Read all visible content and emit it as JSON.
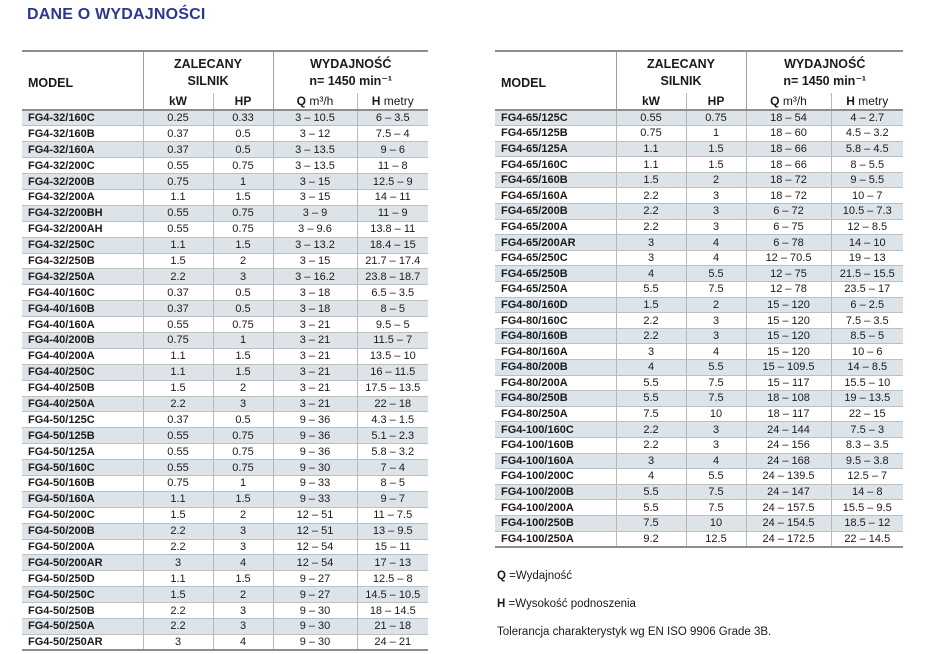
{
  "page_title": "DANE O WYDAJNOŚCI",
  "colors": {
    "title_blue": "#2b3990",
    "row_shade": "#dce3e9",
    "border_dark": "#8a8e91",
    "border_light": "#b5b9bc",
    "text": "#1a1a1a"
  },
  "header": {
    "model": "MODEL",
    "motor_group": "ZALECANY\nSILNIK",
    "perf_group": "WYDAJNOŚĆ\nn= 1450 min⁻¹",
    "kw": "kW",
    "hp": "HP",
    "q_symbol": "Q",
    "q_unit": " m³/h",
    "h_symbol": "H",
    "h_unit": " metry"
  },
  "tables": [
    {
      "rows": [
        [
          "FG4-32/160C",
          "0.25",
          "0.33",
          "3 – 10.5",
          "6 – 3.5"
        ],
        [
          "FG4-32/160B",
          "0.37",
          "0.5",
          "3 – 12",
          "7.5 – 4"
        ],
        [
          "FG4-32/160A",
          "0.37",
          "0.5",
          "3 – 13.5",
          "9 – 6"
        ],
        [
          "FG4-32/200C",
          "0.55",
          "0.75",
          "3 – 13.5",
          "11 – 8"
        ],
        [
          "FG4-32/200B",
          "0.75",
          "1",
          "3 – 15",
          "12.5 – 9"
        ],
        [
          "FG4-32/200A",
          "1.1",
          "1.5",
          "3 – 15",
          "14 – 11"
        ],
        [
          "FG4-32/200BH",
          "0.55",
          "0.75",
          "3 – 9",
          "11 – 9"
        ],
        [
          "FG4-32/200AH",
          "0.55",
          "0.75",
          "3 – 9.6",
          "13.8 – 11"
        ],
        [
          "FG4-32/250C",
          "1.1",
          "1.5",
          "3 – 13.2",
          "18.4 – 15"
        ],
        [
          "FG4-32/250B",
          "1.5",
          "2",
          "3 – 15",
          "21.7 – 17.4"
        ],
        [
          "FG4-32/250A",
          "2.2",
          "3",
          "3 – 16.2",
          "23.8 – 18.7"
        ],
        [
          "FG4-40/160C",
          "0.37",
          "0.5",
          "3 – 18",
          "6.5 – 3.5"
        ],
        [
          "FG4-40/160B",
          "0.37",
          "0.5",
          "3 – 18",
          "8 – 5"
        ],
        [
          "FG4-40/160A",
          "0.55",
          "0.75",
          "3 – 21",
          "9.5 – 5"
        ],
        [
          "FG4-40/200B",
          "0.75",
          "1",
          "3 – 21",
          "11.5 – 7"
        ],
        [
          "FG4-40/200A",
          "1.1",
          "1.5",
          "3 – 21",
          "13.5 – 10"
        ],
        [
          "FG4-40/250C",
          "1.1",
          "1.5",
          "3 – 21",
          "16 – 11.5"
        ],
        [
          "FG4-40/250B",
          "1.5",
          "2",
          "3 – 21",
          "17.5 – 13.5"
        ],
        [
          "FG4-40/250A",
          "2.2",
          "3",
          "3 – 21",
          "22 – 18"
        ],
        [
          "FG4-50/125C",
          "0.37",
          "0.5",
          "9 – 36",
          "4.3 – 1.5"
        ],
        [
          "FG4-50/125B",
          "0.55",
          "0.75",
          "9 – 36",
          "5.1 – 2.3"
        ],
        [
          "FG4-50/125A",
          "0.55",
          "0.75",
          "9 – 36",
          "5.8 – 3.2"
        ],
        [
          "FG4-50/160C",
          "0.55",
          "0.75",
          "9 – 30",
          "7 – 4"
        ],
        [
          "FG4-50/160B",
          "0.75",
          "1",
          "9 – 33",
          "8 – 5"
        ],
        [
          "FG4-50/160A",
          "1.1",
          "1.5",
          "9 – 33",
          "9 – 7"
        ],
        [
          "FG4-50/200C",
          "1.5",
          "2",
          "12 – 51",
          "11 – 7.5"
        ],
        [
          "FG4-50/200B",
          "2.2",
          "3",
          "12 – 51",
          "13 – 9.5"
        ],
        [
          "FG4-50/200A",
          "2.2",
          "3",
          "12 – 54",
          "15 – 11"
        ],
        [
          "FG4-50/200AR",
          "3",
          "4",
          "12 – 54",
          "17 – 13"
        ],
        [
          "FG4-50/250D",
          "1.1",
          "1.5",
          "9 – 27",
          "12.5 – 8"
        ],
        [
          "FG4-50/250C",
          "1.5",
          "2",
          "9 – 27",
          "14.5 – 10.5"
        ],
        [
          "FG4-50/250B",
          "2.2",
          "3",
          "9 – 30",
          "18 – 14.5"
        ],
        [
          "FG4-50/250A",
          "2.2",
          "3",
          "9 – 30",
          "21 – 18"
        ],
        [
          "FG4-50/250AR",
          "3",
          "4",
          "9 – 30",
          "24 – 21"
        ]
      ]
    },
    {
      "rows": [
        [
          "FG4-65/125C",
          "0.55",
          "0.75",
          "18 – 54",
          "4 – 2.7"
        ],
        [
          "FG4-65/125B",
          "0.75",
          "1",
          "18 – 60",
          "4.5 – 3.2"
        ],
        [
          "FG4-65/125A",
          "1.1",
          "1.5",
          "18 – 66",
          "5.8 – 4.5"
        ],
        [
          "FG4-65/160C",
          "1.1",
          "1.5",
          "18 – 66",
          "8 – 5.5"
        ],
        [
          "FG4-65/160B",
          "1.5",
          "2",
          "18 – 72",
          "9 – 5.5"
        ],
        [
          "FG4-65/160A",
          "2.2",
          "3",
          "18 – 72",
          "10 – 7"
        ],
        [
          "FG4-65/200B",
          "2.2",
          "3",
          "6 – 72",
          "10.5 – 7.3"
        ],
        [
          "FG4-65/200A",
          "2.2",
          "3",
          "6 – 75",
          "12 – 8.5"
        ],
        [
          "FG4-65/200AR",
          "3",
          "4",
          "6 – 78",
          "14 – 10"
        ],
        [
          "FG4-65/250C",
          "3",
          "4",
          "12 – 70.5",
          "19 – 13"
        ],
        [
          "FG4-65/250B",
          "4",
          "5.5",
          "12 – 75",
          "21.5 – 15.5"
        ],
        [
          "FG4-65/250A",
          "5.5",
          "7.5",
          "12 – 78",
          "23.5 – 17"
        ],
        [
          "FG4-80/160D",
          "1.5",
          "2",
          "15 – 120",
          "6 – 2.5"
        ],
        [
          "FG4-80/160C",
          "2.2",
          "3",
          "15 – 120",
          "7.5 – 3.5"
        ],
        [
          "FG4-80/160B",
          "2.2",
          "3",
          "15 – 120",
          "8.5 – 5"
        ],
        [
          "FG4-80/160A",
          "3",
          "4",
          "15 – 120",
          "10 – 6"
        ],
        [
          "FG4-80/200B",
          "4",
          "5.5",
          "15 – 109.5",
          "14 – 8.5"
        ],
        [
          "FG4-80/200A",
          "5.5",
          "7.5",
          "15 – 117",
          "15.5 – 10"
        ],
        [
          "FG4-80/250B",
          "5.5",
          "7.5",
          "18 – 108",
          "19 – 13.5"
        ],
        [
          "FG4-80/250A",
          "7.5",
          "10",
          "18 – 117",
          "22 – 15"
        ],
        [
          "FG4-100/160C",
          "2.2",
          "3",
          "24 – 144",
          "7.5 – 3"
        ],
        [
          "FG4-100/160B",
          "2.2",
          "3",
          "24 – 156",
          "8.3 – 3.5"
        ],
        [
          "FG4-100/160A",
          "3",
          "4",
          "24 – 168",
          "9.5 – 3.8"
        ],
        [
          "FG4-100/200C",
          "4",
          "5.5",
          "24 – 139.5",
          "12.5 – 7"
        ],
        [
          "FG4-100/200B",
          "5.5",
          "7.5",
          "24 – 147",
          "14 – 8"
        ],
        [
          "FG4-100/200A",
          "5.5",
          "7.5",
          "24 – 157.5",
          "15.5 – 9.5"
        ],
        [
          "FG4-100/250B",
          "7.5",
          "10",
          "24 – 154.5",
          "18.5 – 12"
        ],
        [
          "FG4-100/250A",
          "9.2",
          "12.5",
          "24 – 172.5",
          "22 – 14.5"
        ]
      ]
    }
  ],
  "notes": [
    {
      "symbol": "Q",
      "text": " =Wydajność"
    },
    {
      "symbol": "H",
      "text": " =Wysokość podnoszenia"
    },
    {
      "symbol": "",
      "text": "Tolerancja charakterystyk wg EN ISO 9906 Grade 3B."
    }
  ]
}
